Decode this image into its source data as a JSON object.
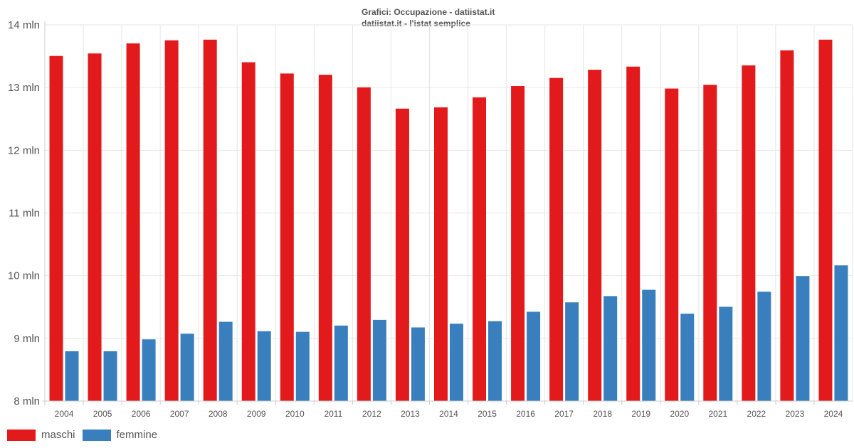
{
  "colors": {
    "maschi": "#e31a1c",
    "femmine": "#3a7fbd",
    "grid": "#e6e6e6",
    "axis": "#cccccc"
  },
  "legend": {
    "maschi": "maschi",
    "femmine": "femmine"
  },
  "chart_data": {
    "type": "bar",
    "title": "Grafici: Occupazione - datiistat.it",
    "subtitle": "datiistat.it - l'istat semplice",
    "xlabel": "",
    "ylabel": "",
    "ylim": [
      8,
      14
    ],
    "yticks": [
      8,
      9,
      10,
      11,
      12,
      13,
      14
    ],
    "ytick_labels": [
      "8 mln",
      "9 mln",
      "10 mln",
      "11 mln",
      "12 mln",
      "13 mln",
      "14 mln"
    ],
    "categories": [
      "2004",
      "2005",
      "2006",
      "2007",
      "2008",
      "2009",
      "2010",
      "2011",
      "2012",
      "2013",
      "2014",
      "2015",
      "2016",
      "2017",
      "2018",
      "2019",
      "2020",
      "2021",
      "2022",
      "2023",
      "2024"
    ],
    "series": [
      {
        "name": "maschi",
        "values": [
          13.51,
          13.55,
          13.71,
          13.76,
          13.77,
          13.41,
          13.23,
          13.21,
          13.01,
          12.67,
          12.69,
          12.85,
          13.03,
          13.16,
          13.29,
          13.34,
          12.99,
          13.05,
          13.36,
          13.6,
          13.77
        ]
      },
      {
        "name": "femmine",
        "values": [
          8.8,
          8.8,
          8.99,
          9.08,
          9.27,
          9.12,
          9.11,
          9.21,
          9.3,
          9.18,
          9.24,
          9.28,
          9.43,
          9.58,
          9.68,
          9.78,
          9.4,
          9.51,
          9.75,
          10.0,
          10.17
        ]
      }
    ]
  }
}
